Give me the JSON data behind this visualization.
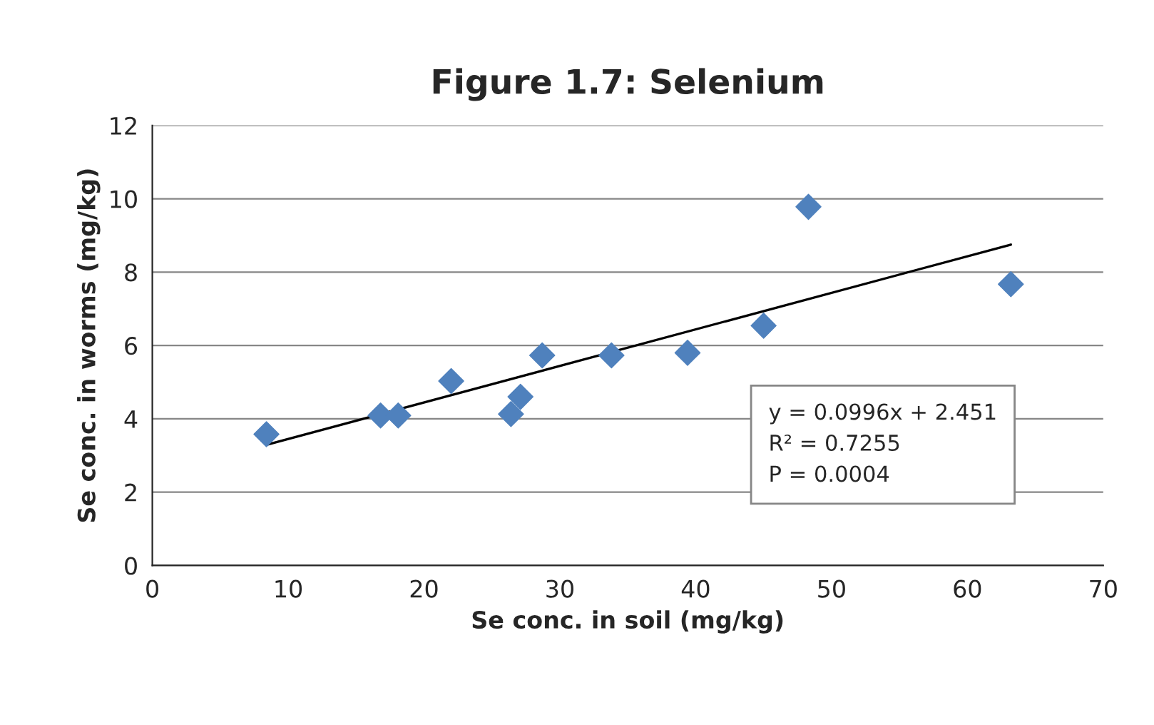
{
  "chart_data": {
    "type": "scatter",
    "title": "Figure 1.7: Selenium",
    "xlabel": "Se conc. in soil (mg/kg)",
    "ylabel": "Se conc. in worms (mg/kg)",
    "series": [
      {
        "color": "#4f81bd",
        "marker": "diamond",
        "x": [
          8.4,
          16.8,
          18.1,
          22.0,
          26.4,
          27.1,
          28.7,
          33.8,
          39.4,
          45.0,
          48.3,
          63.2
        ],
        "values": [
          3.58,
          4.09,
          4.09,
          5.03,
          4.13,
          4.6,
          5.73,
          5.73,
          5.8,
          6.54,
          9.78,
          7.67
        ]
      },
      {
        "type": "line",
        "color": "#000000",
        "marker": "none",
        "x": [
          8.4,
          63.2
        ],
        "values": [
          3.29,
          8.75
        ]
      }
    ],
    "xlim": [
      0,
      70
    ],
    "xticks": [
      0,
      10,
      20,
      30,
      40,
      50,
      60,
      70
    ],
    "ylim": [
      0,
      12
    ],
    "yticks": [
      0,
      2,
      4,
      6,
      8,
      10,
      12
    ],
    "grid": "y",
    "legend": false,
    "annotations": [
      "y = 0.0996x + 2.451\nR² = 0.7255\nP = 0.0004"
    ]
  }
}
